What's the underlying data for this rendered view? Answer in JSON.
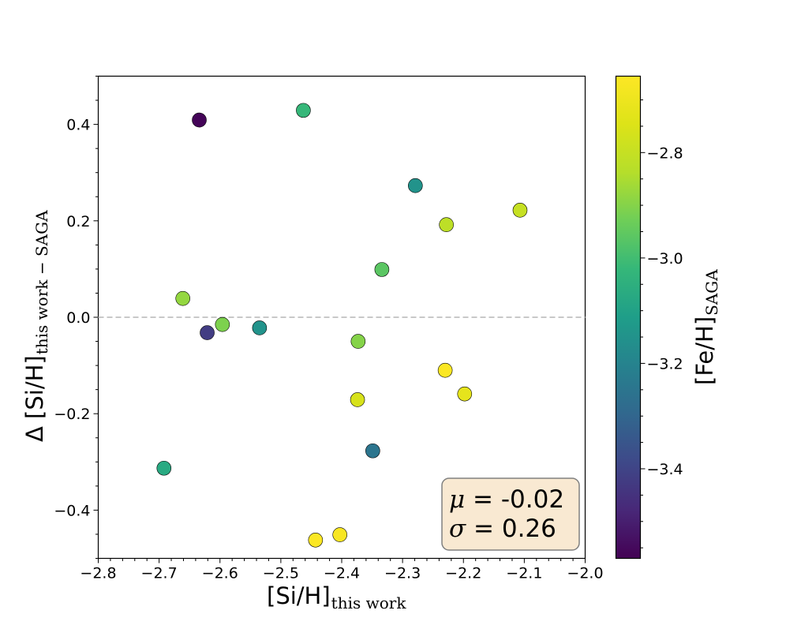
{
  "chart_data": {
    "type": "scatter",
    "xlabel": {
      "main": "[Si/H]",
      "sub": "this work"
    },
    "ylabel": {
      "main": "Δ [Si/H]",
      "sub": "this work − SAGA"
    },
    "colorbar_label": {
      "main": "[Fe/H]",
      "sub": "SAGA"
    },
    "xlim": [
      -2.8,
      -2.0
    ],
    "ylim": [
      -0.5,
      0.5
    ],
    "clim": [
      -3.57,
      -2.655
    ],
    "colormap": "viridis",
    "x_ticks": [
      -2.8,
      -2.7,
      -2.6,
      -2.5,
      -2.4,
      -2.3,
      -2.2,
      -2.1,
      -2.0
    ],
    "x_tick_labels": [
      "−2.8",
      "−2.7",
      "−2.6",
      "−2.5",
      "−2.4",
      "−2.3",
      "−2.2",
      "−2.1",
      "−2.0"
    ],
    "y_ticks": [
      -0.4,
      -0.2,
      0.0,
      0.2,
      0.4
    ],
    "y_tick_labels": [
      "−0.4",
      "−0.2",
      "0.0",
      "0.2",
      "0.4"
    ],
    "colorbar_ticks": [
      -3.4,
      -3.2,
      -3.0,
      -2.8
    ],
    "colorbar_tick_labels": [
      "−3.4",
      "−3.2",
      "−3.0",
      "−2.8"
    ],
    "reference_line": {
      "y": 0.0,
      "style": "dashed",
      "color": "#c0c0c0"
    },
    "grid": false,
    "points": [
      {
        "x": -2.634,
        "y": 0.409,
        "c": -3.56
      },
      {
        "x": -2.463,
        "y": 0.429,
        "c": -3.02
      },
      {
        "x": -2.279,
        "y": 0.273,
        "c": -3.15
      },
      {
        "x": -2.228,
        "y": 0.192,
        "c": -2.82
      },
      {
        "x": -2.107,
        "y": 0.222,
        "c": -2.8
      },
      {
        "x": -2.334,
        "y": 0.099,
        "c": -2.96
      },
      {
        "x": -2.661,
        "y": 0.039,
        "c": -2.88
      },
      {
        "x": -2.596,
        "y": -0.015,
        "c": -2.91
      },
      {
        "x": -2.621,
        "y": -0.032,
        "c": -3.42
      },
      {
        "x": -2.535,
        "y": -0.022,
        "c": -3.15
      },
      {
        "x": -2.373,
        "y": -0.05,
        "c": -2.9
      },
      {
        "x": -2.23,
        "y": -0.11,
        "c": -2.66
      },
      {
        "x": -2.198,
        "y": -0.159,
        "c": -2.72
      },
      {
        "x": -2.374,
        "y": -0.171,
        "c": -2.76
      },
      {
        "x": -2.349,
        "y": -0.277,
        "c": -3.25
      },
      {
        "x": -2.692,
        "y": -0.313,
        "c": -3.07
      },
      {
        "x": -2.443,
        "y": -0.462,
        "c": -2.66
      },
      {
        "x": -2.403,
        "y": -0.451,
        "c": -2.67
      }
    ],
    "annotation": {
      "mu_symbol": "μ",
      "mu_value": " = -0.02",
      "sigma_symbol": "σ",
      "sigma_value": " =  0.26",
      "placement": "bottom-right"
    }
  }
}
